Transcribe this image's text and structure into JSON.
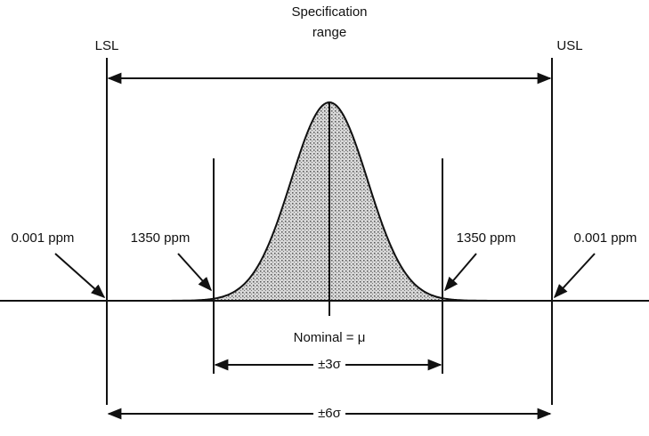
{
  "header": {
    "title_lines": [
      "Specification",
      "range"
    ]
  },
  "limits": {
    "lower": "LSL",
    "upper": "USL"
  },
  "tails": {
    "left_outer": "0.001 ppm",
    "left_inner": "1350 ppm",
    "right_inner": "1350 ppm",
    "right_outer": "0.001 ppm"
  },
  "center": "Nominal = μ",
  "spans": {
    "inner": "±3σ",
    "outer": "±6σ"
  }
}
